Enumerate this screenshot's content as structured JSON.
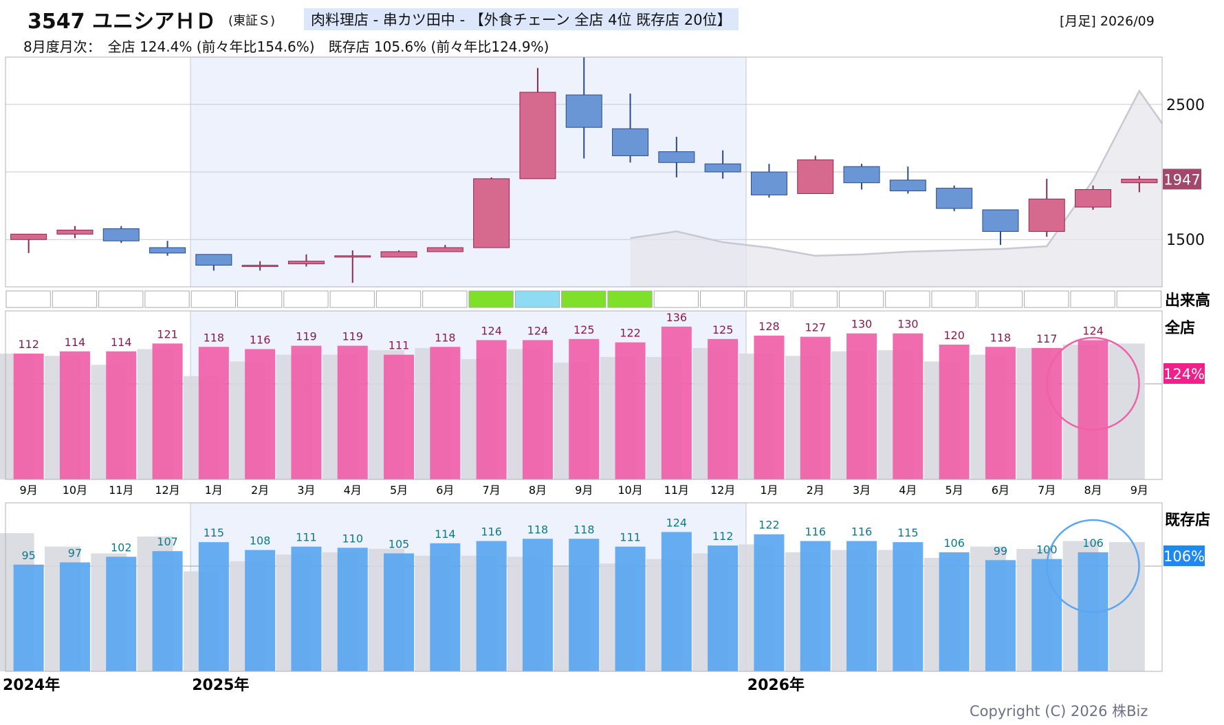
{
  "header": {
    "code_name": "3547 ユニシアＨＤ",
    "market": "(東証Ｓ)",
    "tags": "肉料理店 - 串カツ田中 - 【外食チェーン 全店 4位 既存店 20位】",
    "period": "[月足] 2026/09",
    "monthly_summary": "8月度月次：　全店 124.4% (前々年比154.6%)　既存店 105.6% (前々年比124.9%)"
  },
  "labels": {
    "volume": "出来高",
    "all_stores": "全店",
    "existing_stores": "既存店",
    "all_badge": "124%",
    "existing_badge": "106%",
    "price_badge": "1947",
    "copyright": "Copyright (C) 2026 株Biz"
  },
  "colors": {
    "up": "#d66a8e",
    "down": "#6a96d6",
    "all_bar": "#f060a8",
    "existing_bar": "#5aa6f0",
    "ref_bar": "#d8d8e0",
    "highlight": "#eef2fc",
    "badge_price": "#a2486a",
    "badge_all": "#f0208a",
    "badge_existing": "#1e88f0"
  },
  "chart_data": [
    {
      "type": "candlestick",
      "title": "",
      "y_ticks": [
        1500,
        2500
      ],
      "ylim": [
        1150,
        2850
      ],
      "months": [
        "9月",
        "10月",
        "11月",
        "12月",
        "1月",
        "2月",
        "3月",
        "4月",
        "5月",
        "6月",
        "7月",
        "8月",
        "9月",
        "10月",
        "11月",
        "12月",
        "1月",
        "2月",
        "3月",
        "4月",
        "5月",
        "6月",
        "7月",
        "8月",
        "9月"
      ],
      "year_labels": [
        {
          "index": 0,
          "label": "2024年"
        },
        {
          "index": 4,
          "label": "2025年"
        },
        {
          "index": 16,
          "label": "2026年"
        }
      ],
      "candles": [
        {
          "o": 1500,
          "h": 1540,
          "l": 1400,
          "c": 1540
        },
        {
          "o": 1540,
          "h": 1600,
          "l": 1510,
          "c": 1570
        },
        {
          "o": 1580,
          "h": 1600,
          "l": 1475,
          "c": 1490
        },
        {
          "o": 1440,
          "h": 1490,
          "l": 1380,
          "c": 1400
        },
        {
          "o": 1390,
          "h": 1390,
          "l": 1270,
          "c": 1310
        },
        {
          "o": 1300,
          "h": 1340,
          "l": 1270,
          "c": 1310
        },
        {
          "o": 1320,
          "h": 1390,
          "l": 1300,
          "c": 1340
        },
        {
          "o": 1380,
          "h": 1420,
          "l": 1180,
          "c": 1380
        },
        {
          "o": 1370,
          "h": 1420,
          "l": 1370,
          "c": 1410
        },
        {
          "o": 1410,
          "h": 1460,
          "l": 1410,
          "c": 1440
        },
        {
          "o": 1440,
          "h": 1960,
          "l": 1440,
          "c": 1950
        },
        {
          "o": 1950,
          "h": 2770,
          "l": 1950,
          "c": 2590
        },
        {
          "o": 2570,
          "h": 3000,
          "l": 2100,
          "c": 2330
        },
        {
          "o": 2320,
          "h": 2580,
          "l": 2070,
          "c": 2120
        },
        {
          "o": 2150,
          "h": 2260,
          "l": 1960,
          "c": 2070
        },
        {
          "o": 2060,
          "h": 2160,
          "l": 1950,
          "c": 2000
        },
        {
          "o": 2000,
          "h": 2060,
          "l": 1810,
          "c": 1830
        },
        {
          "o": 1840,
          "h": 2120,
          "l": 1840,
          "c": 2090
        },
        {
          "o": 2040,
          "h": 2060,
          "l": 1870,
          "c": 1920
        },
        {
          "o": 1940,
          "h": 2040,
          "l": 1840,
          "c": 1860
        },
        {
          "o": 1880,
          "h": 1900,
          "l": 1710,
          "c": 1730
        },
        {
          "o": 1720,
          "h": 1720,
          "l": 1460,
          "c": 1560
        },
        {
          "o": 1560,
          "h": 1950,
          "l": 1520,
          "c": 1800
        },
        {
          "o": 1740,
          "h": 1900,
          "l": 1720,
          "c": 1870
        },
        {
          "o": 1920,
          "h": 1970,
          "l": 1850,
          "c": 1947
        }
      ],
      "reference_line": [
        null,
        null,
        null,
        null,
        null,
        null,
        null,
        null,
        null,
        null,
        null,
        null,
        null,
        1510,
        1560,
        1480,
        1440,
        1380,
        1390,
        1410,
        1420,
        1430,
        1450,
        1940,
        2600
      ]
    },
    {
      "type": "bar",
      "title": "全店",
      "ylim": [
        0,
        100
      ],
      "values": [
        112,
        114,
        114,
        121,
        118,
        116,
        119,
        119,
        111,
        118,
        124,
        124,
        125,
        122,
        136,
        125,
        128,
        127,
        130,
        130,
        120,
        118,
        117,
        124,
        null
      ],
      "reference": [
        112,
        110,
        102,
        116,
        92,
        105,
        111,
        111,
        115,
        117,
        107,
        116,
        104,
        109,
        109,
        117,
        112,
        110,
        114,
        115,
        105,
        111,
        117,
        120,
        121
      ]
    },
    {
      "type": "bar",
      "title": "既存店",
      "values": [
        95,
        97,
        102,
        107,
        115,
        108,
        111,
        110,
        105,
        114,
        116,
        118,
        118,
        111,
        124,
        112,
        122,
        116,
        116,
        115,
        106,
        99,
        100,
        106,
        null
      ],
      "reference": [
        123,
        111,
        105,
        120,
        89,
        98,
        104,
        106,
        109,
        103,
        103,
        102,
        93,
        96,
        100,
        105,
        113,
        106,
        108,
        108,
        101,
        111,
        109,
        116,
        115
      ]
    }
  ],
  "volume_cells": [
    "empty",
    "empty",
    "empty",
    "empty",
    "empty",
    "empty",
    "empty",
    "empty",
    "empty",
    "empty",
    "green",
    "cyan",
    "green",
    "green",
    "empty",
    "empty",
    "empty",
    "empty",
    "empty",
    "empty",
    "empty",
    "empty",
    "empty",
    "empty",
    "empty"
  ]
}
